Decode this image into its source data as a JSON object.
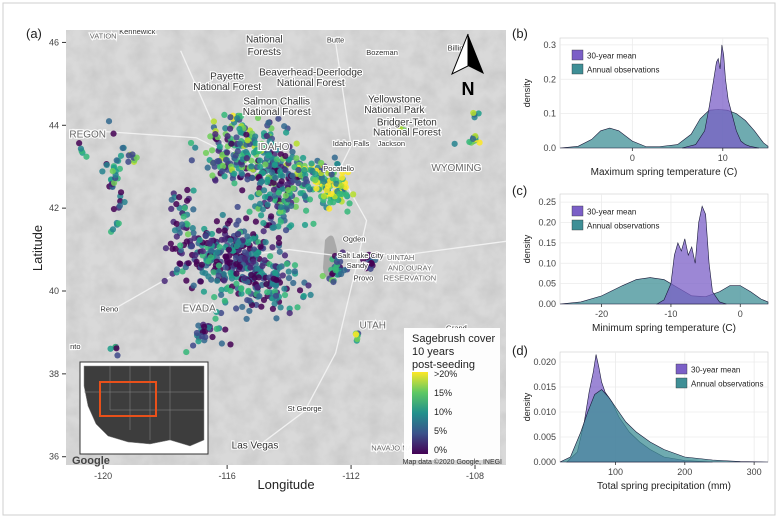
{
  "panel_labels": [
    "(a)",
    "(b)",
    "(c)",
    "(d)"
  ],
  "map": {
    "xlabel": "Longitude",
    "ylabel": "Latitude",
    "x_ticks": [
      "-120",
      "-116",
      "-112",
      "-108"
    ],
    "y_ticks": [
      "46",
      "44",
      "42",
      "40",
      "38",
      "36"
    ],
    "place_labels": [
      {
        "text": "VATION",
        "lon": -120.0,
        "lat": 46.1
      },
      {
        "text": "Kennewick",
        "lon": -118.9,
        "lat": 46.2
      },
      {
        "text": "National",
        "lon": -114.8,
        "lat": 46.0
      },
      {
        "text": "Forests",
        "lon": -114.8,
        "lat": 45.7
      },
      {
        "text": "Butte",
        "lon": -112.5,
        "lat": 46.0
      },
      {
        "text": "Bozeman",
        "lon": -111.0,
        "lat": 45.7
      },
      {
        "text": "Billings",
        "lon": -108.5,
        "lat": 45.8
      },
      {
        "text": "Payette",
        "lon": -116.0,
        "lat": 45.1
      },
      {
        "text": "National Forest",
        "lon": -116.0,
        "lat": 44.85
      },
      {
        "text": "Beaverhead-Deerlodge",
        "lon": -113.3,
        "lat": 45.2
      },
      {
        "text": "National Forest",
        "lon": -113.3,
        "lat": 44.95
      },
      {
        "text": "Salmon Challis",
        "lon": -114.4,
        "lat": 44.5
      },
      {
        "text": "National Forest",
        "lon": -114.4,
        "lat": 44.25
      },
      {
        "text": "Yellowstone",
        "lon": -110.6,
        "lat": 44.55
      },
      {
        "text": "National Park",
        "lon": -110.6,
        "lat": 44.3
      },
      {
        "text": "Bridger-Teton",
        "lon": -110.2,
        "lat": 44.0
      },
      {
        "text": "National Forest",
        "lon": -110.2,
        "lat": 43.75
      },
      {
        "text": "REGON",
        "lon": -120.5,
        "lat": 43.7
      },
      {
        "text": "IDAHO",
        "lon": -114.5,
        "lat": 43.4
      },
      {
        "text": "Idaho Falls",
        "lon": -112.0,
        "lat": 43.5
      },
      {
        "text": "Jackson",
        "lon": -110.7,
        "lat": 43.5
      },
      {
        "text": "Pocatello",
        "lon": -112.4,
        "lat": 42.9
      },
      {
        "text": "WYOMING",
        "lon": -108.6,
        "lat": 42.9
      },
      {
        "text": "Ogden",
        "lon": -111.9,
        "lat": 41.2
      },
      {
        "text": "Salt Lake City",
        "lon": -111.7,
        "lat": 40.8
      },
      {
        "text": "Sandy",
        "lon": -111.8,
        "lat": 40.55
      },
      {
        "text": "Provo",
        "lon": -111.6,
        "lat": 40.25
      },
      {
        "text": "UINTAH",
        "lon": -110.4,
        "lat": 40.75
      },
      {
        "text": "AND OURAY",
        "lon": -110.1,
        "lat": 40.5
      },
      {
        "text": "RESERVATION",
        "lon": -110.1,
        "lat": 40.25
      },
      {
        "text": "Reno",
        "lon": -119.8,
        "lat": 39.5
      },
      {
        "text": "EVADA",
        "lon": -116.9,
        "lat": 39.5
      },
      {
        "text": "UTAH",
        "lon": -111.3,
        "lat": 39.1
      },
      {
        "text": "Grand",
        "lon": -108.6,
        "lat": 39.05
      },
      {
        "text": "nto",
        "lon": -120.9,
        "lat": 38.6
      },
      {
        "text": "St George",
        "lon": -113.5,
        "lat": 37.1
      },
      {
        "text": "Las Vegas",
        "lon": -115.1,
        "lat": 36.2
      },
      {
        "text": "NAVAJO NATION",
        "lon": -110.4,
        "lat": 36.15
      }
    ],
    "google_logo": "Google",
    "attribution": "Map data ©2020 Google, INEGI",
    "north_label": "N",
    "legend": {
      "title_lines": [
        "Sagebrush cover",
        "10 years",
        "post-seeding"
      ],
      "ticks": [
        ">20%",
        "15%",
        "10%",
        "5%",
        "0%"
      ]
    },
    "colors": {
      "low": "#440154",
      "mid1": "#3b528b",
      "mid2": "#21908c",
      "mid3": "#5dc863",
      "high": "#fde725",
      "inset_box": "#e8501a"
    }
  },
  "colors": {
    "mean_fill": "#7b5fc7",
    "obs_fill": "#3f8f96",
    "grid": "#ebebeb"
  },
  "chart_data": [
    {
      "panel": "(b)",
      "type": "area",
      "xlabel": "Maximum spring temperature (C)",
      "ylabel": "density",
      "xlim": [
        -8,
        15
      ],
      "ylim": [
        0,
        0.32
      ],
      "x_ticks": [
        0,
        10
      ],
      "y_ticks": [
        0.0,
        0.1,
        0.2,
        0.3
      ],
      "legend": "top-left",
      "series": [
        {
          "name": "30-year mean",
          "x": [
            5.5,
            7,
            8,
            8.5,
            9,
            9.3,
            9.5,
            9.7,
            9.9,
            10.1,
            10.3,
            10.6,
            11,
            11.5,
            12,
            12.5,
            13,
            14
          ],
          "y": [
            0,
            0.01,
            0.05,
            0.12,
            0.2,
            0.25,
            0.26,
            0.23,
            0.3,
            0.27,
            0.2,
            0.14,
            0.1,
            0.05,
            0.02,
            0.01,
            0.005,
            0
          ]
        },
        {
          "name": "Annual observations",
          "x": [
            -8,
            -6,
            -4.5,
            -3.5,
            -2.5,
            -1.5,
            0,
            1.5,
            3,
            5,
            6.5,
            7.5,
            8.5,
            9.5,
            10.5,
            11.5,
            12.5,
            13.5,
            14.5,
            15
          ],
          "y": [
            0,
            0.005,
            0.025,
            0.05,
            0.058,
            0.05,
            0.02,
            0.004,
            0.004,
            0.01,
            0.04,
            0.085,
            0.11,
            0.112,
            0.11,
            0.1,
            0.08,
            0.05,
            0.015,
            0.005
          ]
        }
      ]
    },
    {
      "panel": "(c)",
      "type": "area",
      "xlabel": "Minimum spring temperature (C)",
      "ylabel": "density",
      "xlim": [
        -26,
        4
      ],
      "ylim": [
        0,
        0.27
      ],
      "x_ticks": [
        -20,
        -10,
        0
      ],
      "y_ticks": [
        0.0,
        0.05,
        0.1,
        0.15,
        0.2,
        0.25
      ],
      "legend": "top-left",
      "series": [
        {
          "name": "30-year mean",
          "x": [
            -12,
            -11,
            -10,
            -9.5,
            -9,
            -8.5,
            -8,
            -7.5,
            -7,
            -6.5,
            -6,
            -5.5,
            -5,
            -4.5,
            -4,
            -3,
            -2
          ],
          "y": [
            0,
            0.01,
            0.05,
            0.12,
            0.15,
            0.13,
            0.16,
            0.12,
            0.14,
            0.1,
            0.2,
            0.24,
            0.22,
            0.1,
            0.03,
            0.005,
            0
          ]
        },
        {
          "name": "Annual observations",
          "x": [
            -26,
            -23,
            -20,
            -17,
            -15,
            -13,
            -11,
            -9,
            -7,
            -5,
            -3,
            -1.5,
            0,
            1.5,
            3,
            4
          ],
          "y": [
            0,
            0.005,
            0.02,
            0.045,
            0.06,
            0.065,
            0.06,
            0.04,
            0.02,
            0.018,
            0.03,
            0.045,
            0.045,
            0.03,
            0.012,
            0.005
          ]
        }
      ]
    },
    {
      "panel": "(d)",
      "type": "area",
      "xlabel": "Total spring precipitation (mm)",
      "ylabel": "density",
      "xlim": [
        20,
        320
      ],
      "ylim": [
        0,
        0.022
      ],
      "x_ticks": [
        100,
        200,
        300
      ],
      "y_ticks": [
        0.0,
        0.005,
        0.01,
        0.015,
        0.02
      ],
      "legend": "top-right",
      "series": [
        {
          "name": "30-year mean",
          "x": [
            30,
            45,
            55,
            62,
            68,
            72,
            76,
            80,
            85,
            95,
            105,
            120,
            135,
            150,
            170,
            200,
            240
          ],
          "y": [
            0,
            0.002,
            0.008,
            0.014,
            0.018,
            0.0215,
            0.019,
            0.016,
            0.014,
            0.012,
            0.009,
            0.006,
            0.004,
            0.0025,
            0.001,
            0.0003,
            0
          ]
        },
        {
          "name": "Annual observations",
          "x": [
            20,
            35,
            50,
            60,
            70,
            80,
            90,
            100,
            115,
            130,
            150,
            170,
            200,
            240,
            280,
            320
          ],
          "y": [
            0,
            0.001,
            0.006,
            0.01,
            0.0135,
            0.0145,
            0.013,
            0.011,
            0.008,
            0.006,
            0.004,
            0.0025,
            0.001,
            0.0004,
            0.0001,
            0
          ]
        }
      ]
    }
  ]
}
